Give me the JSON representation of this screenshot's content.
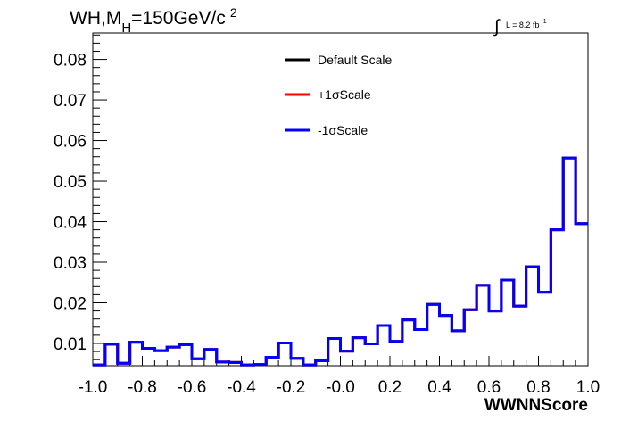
{
  "chart_data": {
    "type": "line",
    "subtype": "step-histogram",
    "title": {
      "main": "WH,M",
      "sub": "H",
      "rest": "=150GeV/c",
      "sup": "2"
    },
    "lumi_label": {
      "integral": "∫",
      "text": "L = 8.2 fb",
      "sup": "-1"
    },
    "xlabel": "WWNNScore",
    "ylabel": "",
    "xlim": [
      -1.0,
      1.0
    ],
    "ylim": [
      0.0045,
      0.0865
    ],
    "x_ticks": [
      "-1.0",
      "-0.8",
      "-0.6",
      "-0.4",
      "-0.2",
      "-0.0",
      "0.2",
      "0.4",
      "0.6",
      "0.8",
      "1.0"
    ],
    "x_tick_values": [
      -1.0,
      -0.8,
      -0.6,
      -0.4,
      -0.2,
      0.0,
      0.2,
      0.4,
      0.6,
      0.8,
      1.0
    ],
    "y_ticks": [
      "0.01",
      "0.02",
      "0.03",
      "0.04",
      "0.05",
      "0.06",
      "0.07",
      "0.08"
    ],
    "y_tick_values": [
      0.01,
      0.02,
      0.03,
      0.04,
      0.05,
      0.06,
      0.07,
      0.08
    ],
    "grid": false,
    "legend_position": "top-center",
    "bin_edges": [
      -1.0,
      -0.95,
      -0.9,
      -0.85,
      -0.8,
      -0.75,
      -0.7,
      -0.65,
      -0.6,
      -0.55,
      -0.5,
      -0.45,
      -0.4,
      -0.35,
      -0.3,
      -0.25,
      -0.2,
      -0.15,
      -0.1,
      -0.05,
      0.0,
      0.05,
      0.1,
      0.15,
      0.2,
      0.25,
      0.3,
      0.35,
      0.4,
      0.45,
      0.5,
      0.55,
      0.6,
      0.65,
      0.7,
      0.75,
      0.8,
      0.85,
      0.9,
      0.95,
      1.0
    ],
    "series": [
      {
        "name": "Default Scale",
        "color": "#000000",
        "values": [
          0.0047,
          0.0098,
          0.0051,
          0.0103,
          0.0088,
          0.0082,
          0.0091,
          0.0097,
          0.0062,
          0.0085,
          0.0054,
          0.0053,
          0.0047,
          0.0048,
          0.0066,
          0.0101,
          0.0063,
          0.0047,
          0.0057,
          0.0112,
          0.0081,
          0.0114,
          0.0099,
          0.0144,
          0.0105,
          0.0158,
          0.0134,
          0.0196,
          0.0169,
          0.0131,
          0.0183,
          0.0243,
          0.018,
          0.0256,
          0.0192,
          0.0289,
          0.0226,
          0.038,
          0.0557,
          0.0395
        ]
      },
      {
        "name": "+1σScale",
        "color": "#ff0000",
        "values": [
          0.0047,
          0.0098,
          0.0051,
          0.0103,
          0.0088,
          0.0082,
          0.0091,
          0.0097,
          0.0062,
          0.0085,
          0.0054,
          0.0053,
          0.0047,
          0.0048,
          0.0066,
          0.0101,
          0.0063,
          0.0047,
          0.0057,
          0.0112,
          0.0081,
          0.0114,
          0.0099,
          0.0144,
          0.0105,
          0.0158,
          0.0134,
          0.0196,
          0.0169,
          0.0131,
          0.0183,
          0.0243,
          0.018,
          0.0256,
          0.0192,
          0.0289,
          0.0226,
          0.038,
          0.0557,
          0.0395
        ]
      },
      {
        "name": "-1σScale",
        "color": "#0000ff",
        "values": [
          0.0047,
          0.0098,
          0.0051,
          0.0103,
          0.0088,
          0.0082,
          0.0091,
          0.0097,
          0.0062,
          0.0085,
          0.0054,
          0.0053,
          0.0047,
          0.0048,
          0.0066,
          0.0101,
          0.0063,
          0.0047,
          0.0057,
          0.0112,
          0.0081,
          0.0114,
          0.0099,
          0.0144,
          0.0105,
          0.0158,
          0.0134,
          0.0196,
          0.0169,
          0.0131,
          0.0183,
          0.0243,
          0.018,
          0.0256,
          0.0192,
          0.0289,
          0.0226,
          0.038,
          0.0557,
          0.0395
        ]
      }
    ]
  }
}
